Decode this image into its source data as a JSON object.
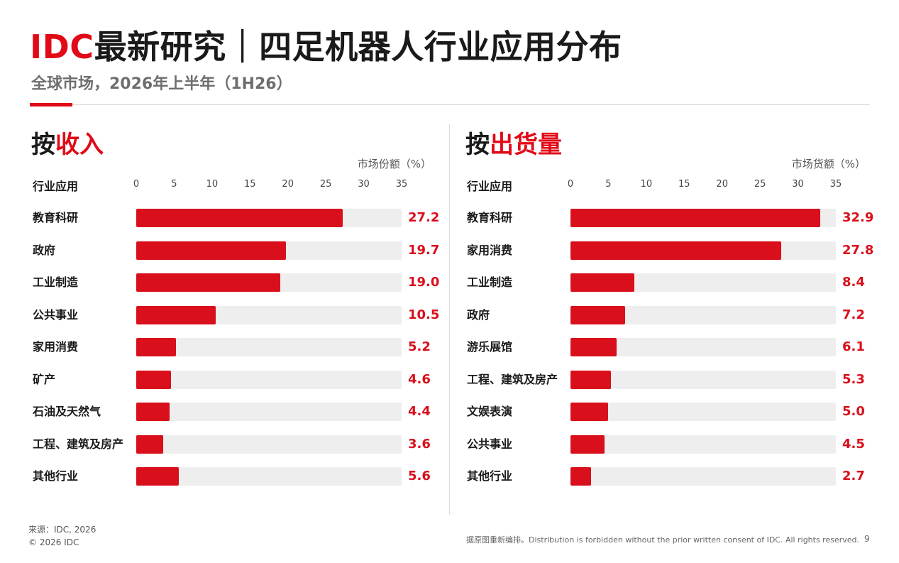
{
  "header": {
    "title_brand": "IDC",
    "title_rest": "最新研究｜四足机器人行业应用分布",
    "subtitle": "全球市场，2026年上半年（1H26）"
  },
  "colors": {
    "accent": "#e10a17",
    "bar": "#d9101c",
    "track": "#eeeeee"
  },
  "chart_data": [
    {
      "type": "bar",
      "orientation": "horizontal",
      "heading_prefix": "按",
      "heading_highlight": "收入",
      "category_header": "行业应用",
      "xlabel": "市场份额（%）",
      "xlim": [
        0,
        35
      ],
      "xticks": [
        0,
        5,
        10,
        15,
        20,
        25,
        30,
        35
      ],
      "categories": [
        "教育科研",
        "政府",
        "工业制造",
        "公共事业",
        "家用消费",
        "矿产",
        "石油及天然气",
        "工程、建筑及房产",
        "其他行业"
      ],
      "values": [
        27.2,
        19.7,
        19.0,
        10.5,
        5.2,
        4.6,
        4.4,
        3.6,
        5.6
      ],
      "value_labels": [
        "27.2",
        "19.7",
        "19.0",
        "10.5",
        "5.2",
        "4.6",
        "4.4",
        "3.6",
        "5.6"
      ]
    },
    {
      "type": "bar",
      "orientation": "horizontal",
      "heading_prefix": "按",
      "heading_highlight": "出货量",
      "category_header": "行业应用",
      "xlabel": "市场货额（%）",
      "xlim": [
        0,
        35
      ],
      "xticks": [
        0,
        5,
        10,
        15,
        20,
        25,
        30,
        35
      ],
      "categories": [
        "教育科研",
        "家用消费",
        "工业制造",
        "政府",
        "游乐展馆",
        "工程、建筑及房产",
        "文娱表演",
        "公共事业",
        "其他行业"
      ],
      "values": [
        32.9,
        27.8,
        8.4,
        7.2,
        6.1,
        5.3,
        5.0,
        4.5,
        2.7
      ],
      "value_labels": [
        "32.9",
        "27.8",
        "8.4",
        "7.2",
        "6.1",
        "5.3",
        "5.0",
        "4.5",
        "2.7"
      ]
    }
  ],
  "footer": {
    "source_line1": "来源：IDC, 2026",
    "source_line2": "© 2026 IDC",
    "notice": "据原图重新编排。Distribution is forbidden without the prior written consent of IDC. All rights reserved.",
    "page_number": "9"
  }
}
